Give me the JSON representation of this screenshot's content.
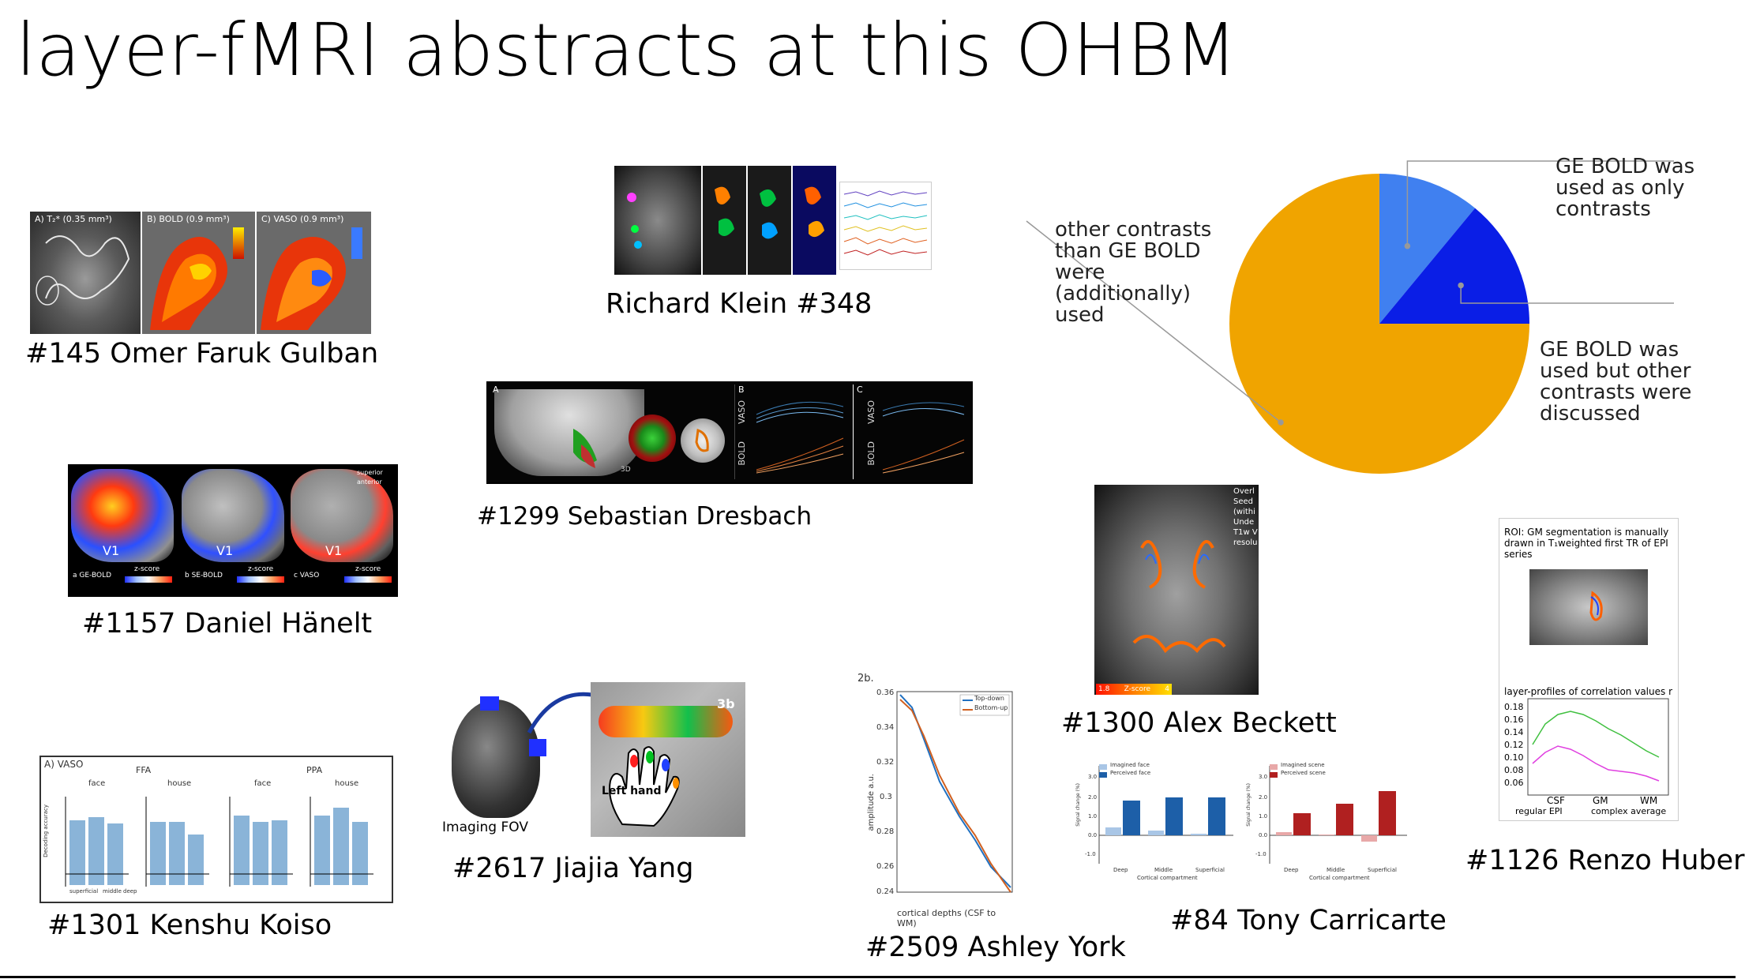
{
  "slide": {
    "title": "layer-fMRI abstracts at this OHBM"
  },
  "abstracts": {
    "gulban": {
      "caption": "#145 Omer Faruk Gulban",
      "panels": [
        "A) T₂* (0.35 mm³)",
        "B) BOLD (0.9 mm³)",
        "C) VASO (0.9 mm³)"
      ]
    },
    "klein": {
      "caption": "Richard Klein #348"
    },
    "dresbach": {
      "caption": "#1299 Sebastian Dresbach",
      "panel_letters": [
        "A",
        "B",
        "C"
      ],
      "axis_labels": [
        "VASO",
        "BOLD",
        "VASO",
        "BOLD"
      ],
      "label_3d": "3D"
    },
    "haenelt": {
      "caption": "#1157 Daniel Hänelt",
      "region": "V1",
      "panel_labels": [
        "a GE-BOLD",
        "b SE-BOLD",
        "c VASO"
      ],
      "colorbar_label": "z-score",
      "orientation": [
        "superior",
        "anterior"
      ]
    },
    "koiso": {
      "caption": "#1301 Kenshu Koiso",
      "panel": "A) VASO",
      "groups": [
        "FFA",
        "PPA"
      ],
      "conditions": [
        "face",
        "house",
        "face",
        "house"
      ],
      "ylabel": "Decoding accuracy",
      "xticks": [
        "superficial",
        "middle",
        "deep"
      ]
    },
    "yang": {
      "caption": "#2617 Jiajia Yang",
      "fov_label": "Imaging FOV",
      "hand_label": "Left hand",
      "area_label": "3b"
    },
    "york": {
      "caption": "#2509  Ashley York",
      "panel": "2b.",
      "xlabel": "cortical depths (CSF to WM)",
      "ylabel": "amplitude a.u.",
      "legend": [
        "Top-down",
        "Bottom-up"
      ]
    },
    "beckett": {
      "caption": "#1300 Alex Beckett",
      "overlay_text": [
        "Overl",
        "Seed",
        "(withi",
        "Unde",
        "T1w V",
        "resolu"
      ],
      "colorbar": [
        "1.8",
        "Z-score",
        "4"
      ]
    },
    "carricarte": {
      "caption": "#84 Tony Carricarte",
      "legend_left": [
        "Imagined face",
        "Perceived face"
      ],
      "legend_right": [
        "Imagined scene",
        "Perceived scene"
      ],
      "ylabel": "Signal change (%)",
      "xticks": [
        "Deep",
        "Middle",
        "Superficial"
      ],
      "xlabel": "Cortical compartment"
    },
    "huber": {
      "caption": "#1126 Renzo Huber",
      "roi_text": "ROI: GM segmentation is manually drawn in T₁weighted first TR of EPI series",
      "profile_title": "layer-profiles of correlation values r",
      "xticks": [
        "CSF",
        "GM",
        "WM"
      ],
      "legend": [
        "regular EPI",
        "complex average"
      ]
    }
  },
  "pie_chart": {
    "labels": {
      "other": "other contrasts than GE BOLD were (additionally) used",
      "only": "GE BOLD was used as only contrasts",
      "discussed": "GE BOLD was used but other contrasts were discussed"
    },
    "colors": {
      "other": "#F0A400",
      "only": "#4080F0",
      "discussed": "#0A1EE6"
    }
  },
  "chart_data": {
    "type": "pie",
    "title": "",
    "categories": [
      "GE BOLD was used as only contrasts",
      "GE BOLD was used but other contrasts were discussed",
      "other contrasts than GE BOLD were (additionally) used"
    ],
    "values": [
      11,
      14,
      75
    ],
    "colors": [
      "#4080F0",
      "#0A1EE6",
      "#F0A400"
    ],
    "start_angle_deg": 0,
    "direction": "clockwise"
  }
}
